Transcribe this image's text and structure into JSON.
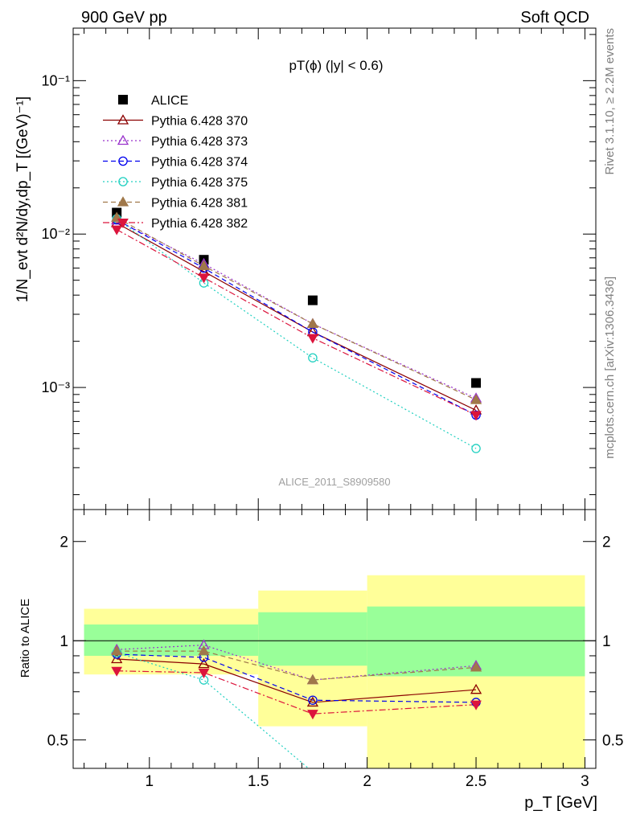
{
  "header": {
    "left": "900 GeV pp",
    "right": "Soft QCD"
  },
  "side_labels": {
    "rivet": "Rivet 3.1.10, ≥ 2.2M events",
    "mcplots": "mcplots.cern.ch [arXiv:1306.3436]"
  },
  "colors": {
    "ALICE": "#000000",
    "p370": "#8b0000",
    "p373": "#9932cc",
    "p374": "#0000ee",
    "p375": "#20d0c0",
    "p381": "#a0784a",
    "p382": "#dc143c",
    "band_inner": "#99ff99",
    "band_outer": "#ffff99"
  },
  "chart_data": [
    {
      "type": "line",
      "title": "pT(ϕ) (|y| < 0.6)",
      "watermark": "ALICE_2011_S8909580",
      "ylabel": "1/N_evt d²N/dy,dp_T [(GeV)⁻¹]",
      "yscale": "log",
      "xlim": [
        0.65,
        3.05
      ],
      "ylim": [
        0.00016,
        0.22
      ],
      "y_tick_labels": [
        "10⁻³",
        "10⁻²",
        "10⁻¹"
      ],
      "legend_position": "top-left",
      "x": [
        0.85,
        1.25,
        1.75,
        2.5
      ],
      "series": [
        {
          "name": "ALICE",
          "marker": "square",
          "values": [
            0.0138,
            0.0068,
            0.0037,
            0.00107
          ]
        },
        {
          "name": "Pythia 6.428 370",
          "marker": "triangle-up-open",
          "line": "solid",
          "values": [
            0.0118,
            0.0057,
            0.0023,
            0.00071
          ]
        },
        {
          "name": "Pythia 6.428 373",
          "marker": "triangle-up-open",
          "line": "dotted",
          "values": [
            0.0123,
            0.0064,
            0.0026,
            0.00085
          ]
        },
        {
          "name": "Pythia 6.428 374",
          "marker": "circle-open",
          "line": "dashed",
          "values": [
            0.0124,
            0.006,
            0.0023,
            0.00066
          ]
        },
        {
          "name": "Pythia 6.428 375",
          "marker": "circle-open",
          "line": "dotted",
          "values": [
            0.0126,
            0.0048,
            0.00156,
            0.0004
          ]
        },
        {
          "name": "Pythia 6.428 381",
          "marker": "triangle-up-filled",
          "line": "dashed",
          "values": [
            0.0128,
            0.0062,
            0.0026,
            0.00083
          ]
        },
        {
          "name": "Pythia 6.428 382",
          "marker": "triangle-down-filled",
          "line": "dashdot",
          "values": [
            0.0107,
            0.0052,
            0.0021,
            0.00066
          ]
        }
      ]
    },
    {
      "type": "line",
      "ylabel": "Ratio to ALICE",
      "xlabel": "p_T [GeV]",
      "yscale": "log",
      "xlim": [
        0.65,
        3.05
      ],
      "ylim": [
        0.41,
        2.5
      ],
      "x_ticks": [
        1,
        1.5,
        2,
        2.5,
        3
      ],
      "x_tick_labels": [
        "1",
        "1.5",
        "2",
        "2.5",
        "3"
      ],
      "y_ticks": [
        0.5,
        1,
        2
      ],
      "y_tick_labels": [
        "0.5",
        "1",
        "2"
      ],
      "bands": [
        {
          "x0": 0.7,
          "x1": 1.5,
          "inner": [
            0.9,
            1.12
          ],
          "outer": [
            0.79,
            1.25
          ]
        },
        {
          "x0": 1.5,
          "x1": 2.0,
          "inner": [
            0.84,
            1.22
          ],
          "outer": [
            0.55,
            1.42
          ]
        },
        {
          "x0": 2.0,
          "x1": 3.0,
          "inner": [
            0.78,
            1.27
          ],
          "outer": [
            0.4,
            1.58
          ]
        }
      ],
      "x": [
        0.85,
        1.25,
        1.75,
        2.5
      ],
      "series": [
        {
          "name": "Pythia 6.428 370",
          "values": [
            0.88,
            0.85,
            0.65,
            0.71
          ]
        },
        {
          "name": "Pythia 6.428 373",
          "values": [
            0.94,
            0.97,
            0.76,
            0.84
          ]
        },
        {
          "name": "Pythia 6.428 374",
          "values": [
            0.91,
            0.89,
            0.66,
            0.65
          ]
        },
        {
          "name": "Pythia 6.428 375",
          "values": [
            0.92,
            0.76,
            0.4,
            0.37
          ]
        },
        {
          "name": "Pythia 6.428 381",
          "values": [
            0.93,
            0.93,
            0.76,
            0.83
          ]
        },
        {
          "name": "Pythia 6.428 382",
          "values": [
            0.81,
            0.8,
            0.6,
            0.64
          ]
        }
      ]
    }
  ]
}
